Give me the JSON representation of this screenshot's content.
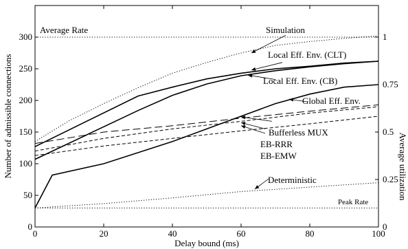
{
  "chart_data": {
    "type": "line",
    "xlabel": "Delay bound (ms)",
    "ylabel": "Number of admissible connections",
    "y2label": "Average utilization",
    "xlim": [
      0,
      100
    ],
    "ylim": [
      0,
      350
    ],
    "y2lim": [
      0,
      1.1667
    ],
    "x_ticks": [
      0,
      20,
      40,
      60,
      80,
      100
    ],
    "y_ticks": [
      0,
      50,
      100,
      150,
      200,
      250,
      300
    ],
    "y2_ticks": [
      0,
      0.25,
      0.5,
      0.75,
      1
    ],
    "x_tick_labels": [
      "0",
      "20",
      "40",
      "60",
      "80",
      "100"
    ],
    "y_tick_labels": [
      "0",
      "50",
      "100",
      "150",
      "200",
      "250",
      "300"
    ],
    "y2_tick_labels": [
      "0",
      "0.25",
      "0.5",
      "0.75",
      "1"
    ],
    "grid": false,
    "series": [
      {
        "name": "Average Rate",
        "style": "dotted",
        "x": [
          0,
          100
        ],
        "y": [
          300,
          300
        ]
      },
      {
        "name": "Simulation",
        "style": "dotted",
        "x": [
          0,
          10,
          20,
          30,
          40,
          50,
          60,
          70,
          80,
          90,
          100
        ],
        "y": [
          135,
          168,
          195,
          220,
          243,
          260,
          275,
          287,
          293,
          298,
          302
        ]
      },
      {
        "name": "Local Eff. Env. (CLT)",
        "style": "solid",
        "x": [
          0,
          30,
          40,
          50,
          60,
          70,
          80,
          90,
          100
        ],
        "y": [
          127,
          207,
          221,
          234,
          243,
          250,
          254,
          259,
          262
        ]
      },
      {
        "name": "Local Eff. Env. (CB)",
        "style": "solid",
        "x": [
          0,
          30,
          40,
          50,
          60,
          70,
          80,
          90,
          100
        ],
        "y": [
          107,
          184,
          208,
          226,
          239,
          247,
          253,
          258,
          262
        ]
      },
      {
        "name": "Global Eff. Env.",
        "style": "solid",
        "x": [
          0,
          5,
          20,
          40,
          50,
          60,
          70,
          80,
          90,
          100
        ],
        "y": [
          30,
          82,
          100,
          135,
          155,
          175,
          195,
          210,
          221,
          225
        ]
      },
      {
        "name": "Bufferless MUX",
        "style": "dashed",
        "x": [
          0,
          20,
          40,
          60,
          80,
          100
        ],
        "y": [
          120,
          140,
          155,
          167,
          180,
          190
        ]
      },
      {
        "name": "EB-RRR",
        "style": "longdash",
        "x": [
          0,
          20,
          40,
          60,
          80,
          100
        ],
        "y": [
          132,
          150,
          160,
          172,
          183,
          193
        ]
      },
      {
        "name": "EB-EMW",
        "style": "dashed",
        "x": [
          0,
          20,
          40,
          60,
          80,
          100
        ],
        "y": [
          113,
          128,
          140,
          152,
          163,
          175
        ]
      },
      {
        "name": "Deterministic",
        "style": "dotted",
        "x": [
          0,
          20,
          40,
          60,
          80,
          100
        ],
        "y": [
          30,
          37,
          46,
          56,
          63,
          70
        ]
      },
      {
        "name": "Peak Rate",
        "style": "dotted",
        "x": [
          0,
          100
        ],
        "y": [
          30,
          30
        ]
      }
    ],
    "annotations": [
      {
        "text": "Average Rate",
        "target": "Average Rate"
      },
      {
        "text": "Simulation",
        "target": "Simulation"
      },
      {
        "text": "Local Eff. Env. (CLT)",
        "target": "Local Eff. Env. (CLT)"
      },
      {
        "text": "Local Eff. Env. (CB)",
        "target": "Local Eff. Env. (CB)"
      },
      {
        "text": "Global Eff. Env.",
        "target": "Global Eff. Env."
      },
      {
        "text": "Bufferless MUX",
        "target": "Bufferless MUX"
      },
      {
        "text": "EB-RRR",
        "target": "EB-RRR"
      },
      {
        "text": "EB-EMW",
        "target": "EB-EMW"
      },
      {
        "text": "Deterministic",
        "target": "Deterministic"
      },
      {
        "text": "Peak Rate",
        "target": "Peak Rate"
      }
    ]
  }
}
